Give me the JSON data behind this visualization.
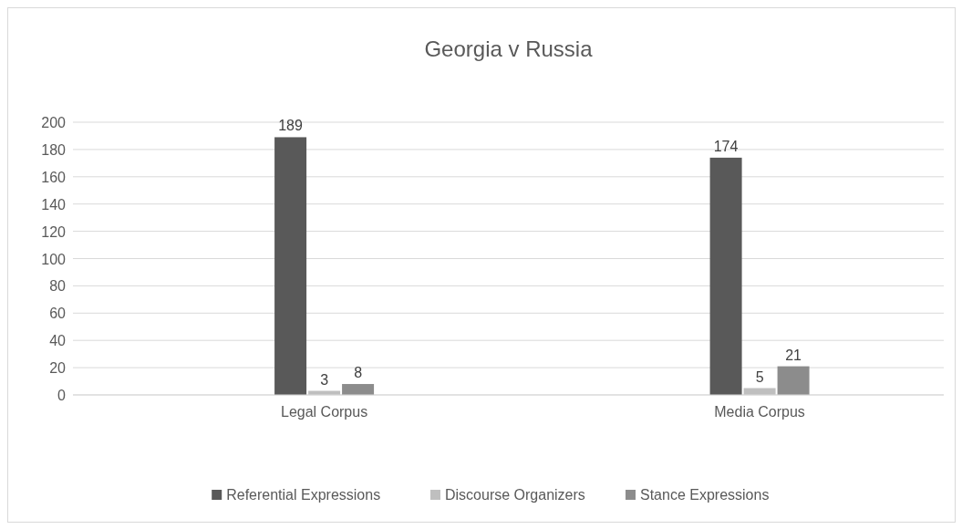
{
  "chart_data": {
    "type": "bar",
    "title": "Georgia v Russia",
    "categories": [
      "Legal Corpus",
      "Media Corpus"
    ],
    "series": [
      {
        "name": "Referential Expressions",
        "color": "#595959",
        "values": [
          189,
          174
        ]
      },
      {
        "name": "Discourse Organizers",
        "color": "#bfbfbf",
        "values": [
          3,
          5
        ]
      },
      {
        "name": "Stance Expressions",
        "color": "#8c8c8c",
        "values": [
          8,
          21
        ]
      }
    ],
    "ylim": [
      0,
      200
    ],
    "yticks": [
      0,
      20,
      40,
      60,
      80,
      100,
      120,
      140,
      160,
      180,
      200
    ],
    "grid": "y",
    "legend": "bottom",
    "data_labels": true
  }
}
